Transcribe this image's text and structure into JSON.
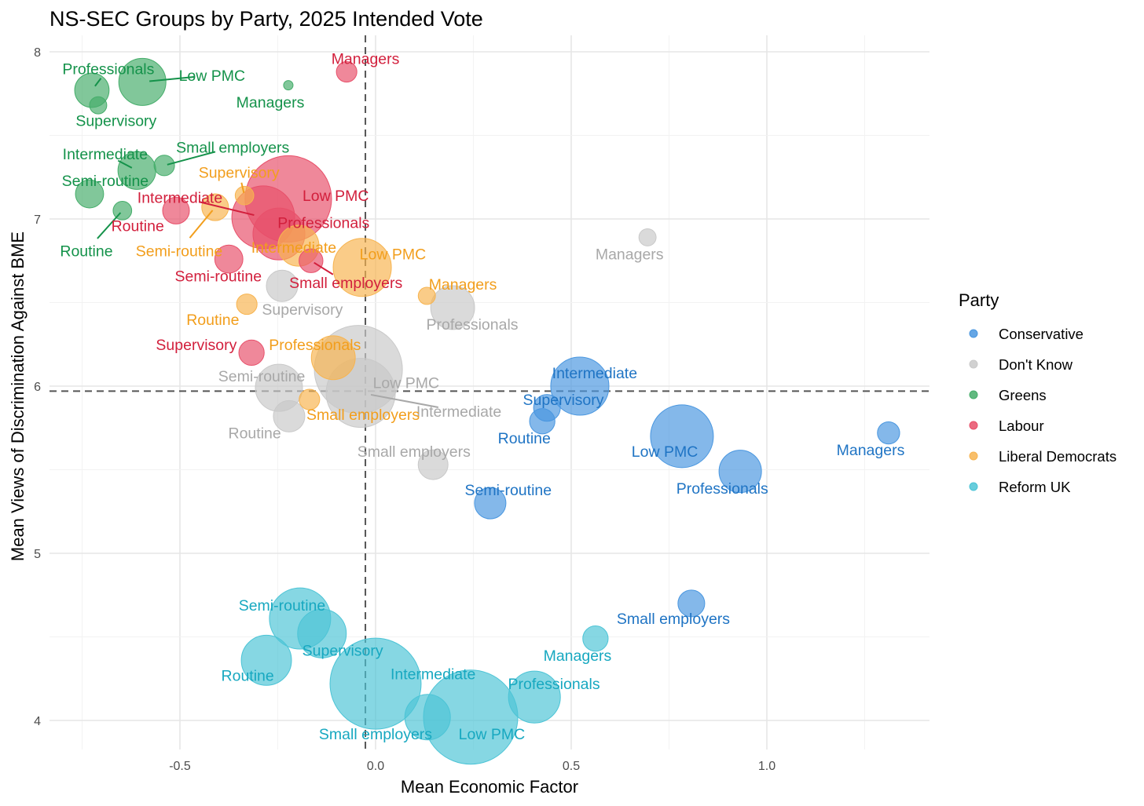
{
  "chart_data": {
    "type": "scatter",
    "title": "NS-SEC Groups by Party, 2025 Intended Vote",
    "xlabel": "Mean Economic Factor",
    "ylabel": "Mean Views of Discrimination Against BME",
    "xlim": [
      -0.76,
      1.42
    ],
    "ylim": [
      3.84,
      8.1
    ],
    "xticks": [
      -0.5,
      0.0,
      0.5,
      1.0
    ],
    "xtick_labels": [
      "-0.5",
      "0.0",
      "0.5",
      "1.0"
    ],
    "yticks": [
      4,
      5,
      6,
      7,
      8
    ],
    "ytick_labels": [
      "4",
      "5",
      "6",
      "7",
      "8"
    ],
    "grid": true,
    "reference_lines": {
      "x": -0.026,
      "y": 5.97
    },
    "legend": {
      "title": "Party",
      "placement": "right"
    },
    "series": [
      {
        "name": "Conservative",
        "color": "#4a97e0",
        "text_color": "#1f74c4",
        "points": [
          {
            "label": "Intermediate",
            "x": 0.522,
            "y": 6.0,
            "size": 13.7,
            "lx": 0.56,
            "ly": 6.08
          },
          {
            "label": "Supervisory",
            "x": 0.438,
            "y": 5.87,
            "size": 2.9,
            "lx": 0.48,
            "ly": 5.92
          },
          {
            "label": "Routine",
            "x": 0.426,
            "y": 5.79,
            "size": 2.6,
            "lx": 0.38,
            "ly": 5.69
          },
          {
            "label": "Low PMC",
            "x": 0.783,
            "y": 5.7,
            "size": 16.0,
            "lx": 0.739,
            "ly": 5.61
          },
          {
            "label": "Professionals",
            "x": 0.932,
            "y": 5.49,
            "size": 7.3,
            "lx": 0.886,
            "ly": 5.39
          },
          {
            "label": "Managers",
            "x": 1.311,
            "y": 5.72,
            "size": 2.0,
            "lx": 1.265,
            "ly": 5.62
          },
          {
            "label": "Semi-routine",
            "x": 0.293,
            "y": 5.3,
            "size": 4.0,
            "lx": 0.339,
            "ly": 5.38
          },
          {
            "label": "Small employers",
            "x": 0.807,
            "y": 4.7,
            "size": 2.9,
            "lx": 0.761,
            "ly": 4.61
          }
        ]
      },
      {
        "name": "Don't Know",
        "color": "#c9c9c9",
        "text_color": "#a8a8a8",
        "points": [
          {
            "label": "Managers",
            "x": 0.695,
            "y": 6.89,
            "size": 1.2,
            "lx": 0.649,
            "ly": 6.79
          },
          {
            "label": "Supervisory",
            "x": -0.239,
            "y": 6.6,
            "size": 4.0,
            "lx": -0.187,
            "ly": 6.46
          },
          {
            "label": "Professionals",
            "x": 0.197,
            "y": 6.47,
            "size": 7.8,
            "lx": 0.247,
            "ly": 6.37
          },
          {
            "label": "Low PMC",
            "x": -0.044,
            "y": 6.1,
            "size": 31.4,
            "lx": 0.078,
            "ly": 6.02
          },
          {
            "label": "Intermediate",
            "x": -0.038,
            "y": 5.96,
            "size": 19.4,
            "lx": 0.213,
            "ly": 5.85,
            "leader": true
          },
          {
            "label": "Semi-routine",
            "x": -0.247,
            "y": 5.99,
            "size": 9.0,
            "lx": -0.291,
            "ly": 6.06
          },
          {
            "label": "Routine",
            "x": -0.221,
            "y": 5.82,
            "size": 4.0,
            "lx": -0.309,
            "ly": 5.72
          },
          {
            "label": "Small employers",
            "x": 0.147,
            "y": 5.53,
            "size": 3.6,
            "lx": 0.098,
            "ly": 5.61
          }
        ]
      },
      {
        "name": "Greens",
        "color": "#45ad6a",
        "text_color": "#14924a",
        "points": [
          {
            "label": "Professionals",
            "x": -0.725,
            "y": 7.77,
            "size": 4.8,
            "lx": -0.683,
            "ly": 7.9,
            "leader": true
          },
          {
            "label": "Low PMC",
            "x": -0.596,
            "y": 7.82,
            "size": 9.0,
            "lx": -0.418,
            "ly": 7.86,
            "leader": true
          },
          {
            "label": "Supervisory",
            "x": -0.709,
            "y": 7.68,
            "size": 1.2,
            "lx": -0.663,
            "ly": 7.59
          },
          {
            "label": "Managers",
            "x": -0.223,
            "y": 7.8,
            "size": 0.36,
            "lx": -0.269,
            "ly": 7.7
          },
          {
            "label": "Small employers",
            "x": -0.54,
            "y": 7.32,
            "size": 1.7,
            "lx": -0.365,
            "ly": 7.43,
            "leader": true
          },
          {
            "label": "Intermediate",
            "x": -0.61,
            "y": 7.29,
            "size": 5.8,
            "lx": -0.691,
            "ly": 7.39,
            "leader": true
          },
          {
            "label": "Semi-routine",
            "x": -0.731,
            "y": 7.15,
            "size": 3.2,
            "lx": -0.691,
            "ly": 7.23
          },
          {
            "label": "Routine",
            "x": -0.647,
            "y": 7.05,
            "size": 1.4,
            "lx": -0.739,
            "ly": 6.81,
            "leader": true
          }
        ]
      },
      {
        "name": "Labour",
        "color": "#e8506a",
        "text_color": "#d21f3c",
        "points": [
          {
            "label": "Managers",
            "x": -0.074,
            "y": 7.88,
            "size": 1.7,
            "lx": -0.026,
            "ly": 7.96
          },
          {
            "label": "Low PMC",
            "x": -0.223,
            "y": 7.12,
            "size": 30.3,
            "lx": -0.102,
            "ly": 7.14
          },
          {
            "label": "Intermediate",
            "x": -0.287,
            "y": 7.01,
            "size": 16.0,
            "lx": -0.5,
            "ly": 7.13,
            "leader": true
          },
          {
            "label": "Professionals",
            "x": -0.247,
            "y": 6.91,
            "size": 10.9,
            "lx": -0.133,
            "ly": 6.98
          },
          {
            "label": "Routine",
            "x": -0.51,
            "y": 7.05,
            "size": 2.9,
            "lx": -0.608,
            "ly": 6.96
          },
          {
            "label": "Semi-routine",
            "x": -0.375,
            "y": 6.76,
            "size": 3.2,
            "lx": -0.402,
            "ly": 6.66
          },
          {
            "label": "Small employers",
            "x": -0.165,
            "y": 6.75,
            "size": 2.3,
            "lx": -0.076,
            "ly": 6.62,
            "leader": true
          },
          {
            "label": "Supervisory",
            "x": -0.317,
            "y": 6.2,
            "size": 2.6,
            "lx": -0.458,
            "ly": 6.25
          }
        ]
      },
      {
        "name": "Liberal Democrats",
        "color": "#f7b450",
        "text_color": "#f29e1c",
        "points": [
          {
            "label": "Supervisory",
            "x": -0.335,
            "y": 7.14,
            "size": 1.4,
            "lx": -0.349,
            "ly": 7.28,
            "leader": true
          },
          {
            "label": "Semi-routine",
            "x": -0.41,
            "y": 7.07,
            "size": 2.9,
            "lx": -0.502,
            "ly": 6.81,
            "leader": true
          },
          {
            "label": "Intermediate",
            "x": -0.197,
            "y": 6.84,
            "size": 6.8,
            "lx": -0.209,
            "ly": 6.83
          },
          {
            "label": "Low PMC",
            "x": -0.034,
            "y": 6.71,
            "size": 13.7,
            "lx": 0.044,
            "ly": 6.79
          },
          {
            "label": "Managers",
            "x": 0.131,
            "y": 6.54,
            "size": 1.2,
            "lx": 0.223,
            "ly": 6.61
          },
          {
            "label": "Routine",
            "x": -0.329,
            "y": 6.49,
            "size": 1.7,
            "lx": -0.416,
            "ly": 6.4
          },
          {
            "label": "Professionals",
            "x": -0.108,
            "y": 6.17,
            "size": 7.8,
            "lx": -0.155,
            "ly": 6.25
          },
          {
            "label": "Small employers",
            "x": -0.169,
            "y": 5.92,
            "size": 1.7,
            "lx": -0.032,
            "ly": 5.83
          }
        ]
      },
      {
        "name": "Reform UK",
        "color": "#4cc4d6",
        "text_color": "#17a8c0",
        "points": [
          {
            "label": "Semi-routine",
            "x": -0.193,
            "y": 4.61,
            "size": 15.2,
            "lx": -0.239,
            "ly": 4.69
          },
          {
            "label": "Supervisory",
            "x": -0.137,
            "y": 4.52,
            "size": 9.6,
            "lx": -0.084,
            "ly": 4.42
          },
          {
            "label": "Routine",
            "x": -0.279,
            "y": 4.36,
            "size": 10.2,
            "lx": -0.327,
            "ly": 4.27
          },
          {
            "label": "Intermediate",
            "x": 0.0,
            "y": 4.22,
            "size": 33.6,
            "lx": 0.147,
            "ly": 4.28
          },
          {
            "label": "Managers",
            "x": 0.562,
            "y": 4.49,
            "size": 2.6,
            "lx": 0.516,
            "ly": 4.39
          },
          {
            "label": "Professionals",
            "x": 0.406,
            "y": 4.14,
            "size": 10.9,
            "lx": 0.456,
            "ly": 4.22
          },
          {
            "label": "Small employers",
            "x": 0.133,
            "y": 4.02,
            "size": 8.4,
            "lx": 0.0,
            "ly": 3.92
          },
          {
            "label": "Low PMC",
            "x": 0.243,
            "y": 4.02,
            "size": 36.0,
            "lx": 0.297,
            "ly": 3.92
          }
        ]
      }
    ]
  }
}
